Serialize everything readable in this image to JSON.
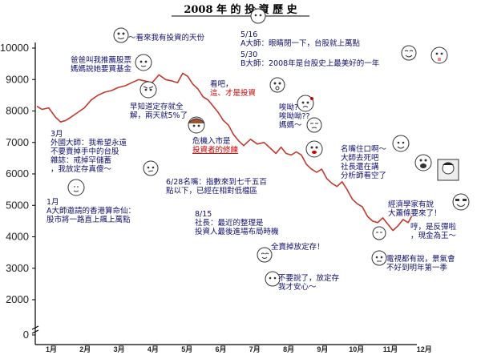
{
  "chart_data": {
    "type": "line",
    "title": "2008 年 的 投 資 歷 史",
    "xlabel": "",
    "ylabel": "",
    "ylim": [
      0,
      10000
    ],
    "yticks": [
      0,
      2000,
      3000,
      4000,
      5000,
      6000,
      7000,
      8000,
      9000,
      10000
    ],
    "y_axis_break": true,
    "grid": false,
    "line_color": "#c0392b",
    "x_tick_labels": [
      "1月",
      "2月",
      "3月",
      "4月",
      "5月",
      "6月",
      "7月",
      "8月",
      "9月",
      "10月",
      "11月",
      "12月"
    ],
    "series": [
      {
        "x": [
          0.0,
          0.15,
          0.35,
          0.55,
          0.7,
          0.85,
          1.0,
          1.2,
          1.4,
          1.6,
          1.8,
          2.0,
          2.2,
          2.4,
          2.6,
          2.8,
          3.0,
          3.2,
          3.4,
          3.6,
          3.8,
          4.0,
          4.15,
          4.3,
          4.45,
          4.6,
          4.75,
          4.9,
          5.05,
          5.2,
          5.35,
          5.5,
          5.65,
          5.8,
          5.95,
          6.1,
          6.3,
          6.5,
          6.7,
          6.9,
          7.05,
          7.2,
          7.35,
          7.5,
          7.65,
          7.8,
          7.95,
          8.1,
          8.25,
          8.4,
          8.55,
          8.7,
          8.85,
          9.0,
          9.15,
          9.3,
          9.45,
          9.6,
          9.75,
          9.9,
          10.05,
          10.2,
          10.35,
          10.5,
          10.65,
          10.8,
          10.95,
          11.05
        ],
        "values": [
          8150,
          8050,
          8100,
          7800,
          7650,
          7700,
          7800,
          7950,
          8100,
          8350,
          8500,
          8600,
          8650,
          8750,
          8800,
          8900,
          9000,
          8950,
          8900,
          9150,
          9000,
          8950,
          8900,
          9200,
          9100,
          8850,
          8700,
          8450,
          8350,
          8150,
          7950,
          7700,
          7550,
          7250,
          7050,
          6900,
          7100,
          6950,
          7000,
          6800,
          6650,
          6850,
          6650,
          6600,
          6700,
          6600,
          6300,
          6150,
          6050,
          6150,
          5850,
          5700,
          5600,
          5750,
          5500,
          5200,
          5050,
          4950,
          4650,
          4500,
          4450,
          4600,
          4400,
          4200,
          4350,
          4550,
          4450,
          4650
        ]
      }
    ],
    "annotations": [
      {
        "lines": [
          "～看來我有投資的天份"
        ]
      },
      {
        "lines": [
          "5/16",
          "A大師：眼睛閉一下，台股就上萬點"
        ]
      },
      {
        "lines": [
          "5/30",
          "B大師：2008年是台股史上最美好的一年"
        ]
      },
      {
        "lines": [
          "爸爸叫我推薦股票",
          "媽媽說她要買基金"
        ]
      },
      {
        "lines": [
          "早知道定存就全",
          "解，兩天就5%了"
        ]
      },
      {
        "lines": [
          "看吧，",
          "這、才是投資"
        ]
      },
      {
        "lines": [
          "唉呦?",
          "唉呦呦??",
          "媽媽～"
        ]
      },
      {
        "lines": [
          "危機入市是",
          "投資者的修練"
        ]
      },
      {
        "lines": [
          "3月",
          "外國大師：我希望永遠",
          "不要賣掉手中的台股",
          "雜誌：戒掉罕儲蓄",
          "，我放定存真傻～"
        ]
      },
      {
        "lines": [
          "6/28名嘴：指數來到七千五百",
          "點以下，已經在相對低檔區"
        ]
      },
      {
        "lines": [
          "1月",
          "A大師邀請的香港算命仙：",
          "股市將一路直上飆上萬點"
        ]
      },
      {
        "lines": [
          "8/15",
          "社長：最近的整理是",
          "投資人最後進場布局時機"
        ]
      },
      {
        "lines": [
          "全賣掉放定存！"
        ]
      },
      {
        "lines": [
          "名嘴住口啊～",
          "大師去死吧",
          "社長還在講",
          "分析師看空了"
        ]
      },
      {
        "lines": [
          "經濟學家有說",
          "大蕭條要來了！"
        ]
      },
      {
        "lines": [
          "哼，是反彈啦",
          "，現金為王～"
        ]
      },
      {
        "lines": [
          "電視都有說，景氣會",
          "不好到明年第一季"
        ]
      },
      {
        "lines": [
          "不要說了，放定存",
          "我才安心～"
        ]
      }
    ]
  }
}
